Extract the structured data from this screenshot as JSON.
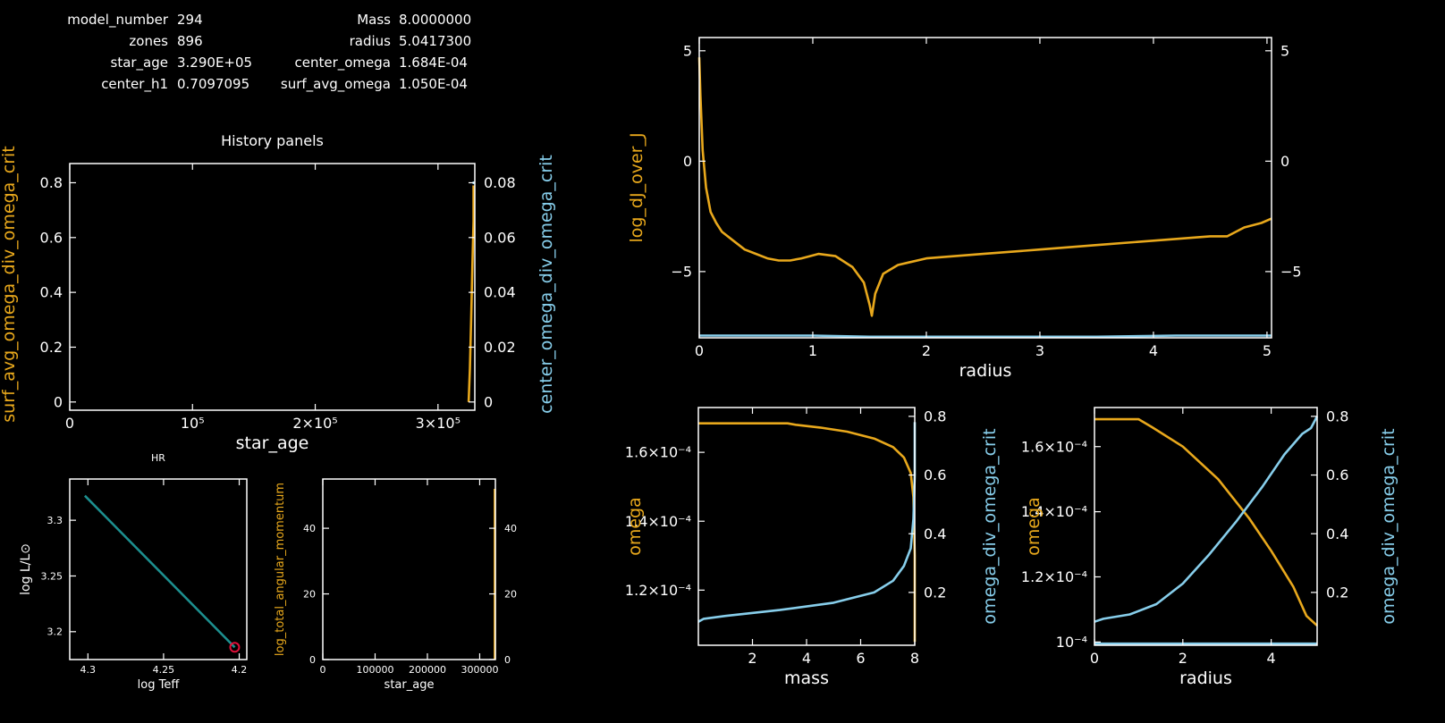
{
  "colors": {
    "background": "#000000",
    "frame": "#ffffff",
    "text": "#ffffff",
    "orange": "#e8a81c",
    "blue": "#87ceeb",
    "teal": "#1d8f8f",
    "marker": "#e0103a"
  },
  "header": {
    "rows": [
      {
        "l_label": "model_number",
        "l_value": "294",
        "r_label": "Mass",
        "r_value": "8.0000000"
      },
      {
        "l_label": "zones",
        "l_value": "896",
        "r_label": "radius",
        "r_value": "5.0417300"
      },
      {
        "l_label": "star_age",
        "l_value": "3.290E+05",
        "r_label": "center_omega",
        "r_value": "1.684E-04"
      },
      {
        "l_label": "center_h1",
        "l_value": "0.7097095",
        "r_label": "surf_avg_omega",
        "r_value": "1.050E-04"
      }
    ]
  },
  "chart_data": [
    {
      "id": "history",
      "type": "line",
      "title": "History panels",
      "xlabel": "star_age",
      "ylabel": "surf_avg_omega_div_omega_crit",
      "y2label": "center_omega_div_omega_crit",
      "xlim": [
        0,
        330000
      ],
      "ylim": [
        -0.03,
        0.87
      ],
      "y2lim": [
        -0.003,
        0.087
      ],
      "xticks": [
        {
          "v": 0,
          "t": "0"
        },
        {
          "v": 100000,
          "t": "10⁵"
        },
        {
          "v": 200000,
          "t": "2×10⁵"
        },
        {
          "v": 300000,
          "t": "3×10⁵"
        }
      ],
      "yticks": [
        {
          "v": 0,
          "t": "0"
        },
        {
          "v": 0.2,
          "t": "0.2"
        },
        {
          "v": 0.4,
          "t": "0.4"
        },
        {
          "v": 0.6,
          "t": "0.6"
        },
        {
          "v": 0.8,
          "t": "0.8"
        }
      ],
      "y2ticks": [
        {
          "v": 0,
          "t": "0"
        },
        {
          "v": 0.02,
          "t": "0.02"
        },
        {
          "v": 0.04,
          "t": "0.04"
        },
        {
          "v": 0.06,
          "t": "0.06"
        },
        {
          "v": 0.08,
          "t": "0.08"
        }
      ],
      "series": [
        {
          "color": "orange",
          "x": [
            325000,
            326000,
            327000,
            328000,
            329000,
            329000
          ],
          "y": [
            0.0,
            0.12,
            0.3,
            0.5,
            0.66,
            0.79
          ]
        },
        {
          "color": "blue",
          "axis": "y2",
          "x": [
            329000
          ],
          "y": [
            0.08
          ]
        }
      ]
    },
    {
      "id": "hr",
      "type": "line",
      "title": "HR",
      "xlabel": "log Teff",
      "ylabel": "log L/L⊙",
      "xlim": [
        4.312,
        4.195
      ],
      "ylim": [
        3.175,
        3.337
      ],
      "xticks": [
        {
          "v": 4.3,
          "t": "4.3"
        },
        {
          "v": 4.25,
          "t": "4.25"
        },
        {
          "v": 4.2,
          "t": "4.2"
        }
      ],
      "yticks": [
        {
          "v": 3.2,
          "t": "3.2"
        },
        {
          "v": 3.25,
          "t": "3.25"
        },
        {
          "v": 3.3,
          "t": "3.3"
        }
      ],
      "series": [
        {
          "color": "teal",
          "x": [
            4.302,
            4.203
          ],
          "y": [
            3.322,
            3.186
          ]
        }
      ],
      "marker": {
        "x": 4.203,
        "y": 3.186,
        "color": "marker"
      }
    },
    {
      "id": "angmom",
      "type": "line",
      "ylabel": "log_total_angular_momentum",
      "xlabel": "star_age",
      "xlim": [
        0,
        330000
      ],
      "ylim": [
        0,
        55
      ],
      "xticks": [
        {
          "v": 0,
          "t": "0"
        },
        {
          "v": 100000,
          "t": "100000"
        },
        {
          "v": 200000,
          "t": "200000"
        },
        {
          "v": 300000,
          "t": "300000"
        }
      ],
      "yticks": [
        {
          "v": 0,
          "t": "0"
        },
        {
          "v": 20,
          "t": "20"
        },
        {
          "v": 40,
          "t": "40"
        }
      ],
      "y2ticks": [
        {
          "v": 0,
          "t": "0"
        },
        {
          "v": 20,
          "t": "20"
        },
        {
          "v": 40,
          "t": "40"
        }
      ],
      "series": [
        {
          "color": "orange",
          "x": [
            329000,
            329000
          ],
          "y": [
            0,
            52
          ]
        }
      ]
    },
    {
      "id": "djj",
      "type": "line",
      "xlabel": "radius",
      "ylabel": "log_dJ_over_J",
      "xlim": [
        0,
        5.04
      ],
      "ylim": [
        -8,
        5.6
      ],
      "y2lim": [
        -8,
        5.6
      ],
      "xticks": [
        {
          "v": 0,
          "t": "0"
        },
        {
          "v": 1,
          "t": "1"
        },
        {
          "v": 2,
          "t": "2"
        },
        {
          "v": 3,
          "t": "3"
        },
        {
          "v": 4,
          "t": "4"
        },
        {
          "v": 5,
          "t": "5"
        }
      ],
      "yticks": [
        {
          "v": 5,
          "t": "5"
        },
        {
          "v": 0,
          "t": "0"
        },
        {
          "v": -5,
          "t": "−5"
        }
      ],
      "y2ticks": [
        {
          "v": 5,
          "t": "5"
        },
        {
          "v": 0,
          "t": "0"
        },
        {
          "v": -5,
          "t": "−5"
        }
      ],
      "series": [
        {
          "color": "orange",
          "x": [
            0.0,
            0.01,
            0.03,
            0.06,
            0.1,
            0.15,
            0.2,
            0.3,
            0.4,
            0.5,
            0.6,
            0.7,
            0.8,
            0.9,
            1.05,
            1.2,
            1.35,
            1.45,
            1.5,
            1.52,
            1.55,
            1.62,
            1.75,
            2.0,
            2.5,
            3.0,
            3.5,
            4.0,
            4.5,
            4.65,
            4.8,
            4.95,
            5.04
          ],
          "y": [
            4.7,
            3.0,
            0.5,
            -1.2,
            -2.3,
            -2.8,
            -3.2,
            -3.6,
            -4.0,
            -4.2,
            -4.4,
            -4.5,
            -4.5,
            -4.4,
            -4.2,
            -4.3,
            -4.8,
            -5.5,
            -6.5,
            -7.0,
            -6.0,
            -5.1,
            -4.7,
            -4.4,
            -4.2,
            -4.0,
            -3.8,
            -3.6,
            -3.4,
            -3.4,
            -3.0,
            -2.8,
            -2.6
          ]
        },
        {
          "color": "blue",
          "x": [
            0.0,
            1.0,
            1.5,
            3.5,
            4.2,
            5.04
          ],
          "y": [
            -7.9,
            -7.9,
            -7.95,
            -7.95,
            -7.9,
            -7.9
          ]
        }
      ]
    },
    {
      "id": "omega_mass",
      "type": "line",
      "xlabel": "mass",
      "ylabel": "omega",
      "y2label": "omega_div_omega_crit",
      "xlim": [
        0,
        8
      ],
      "ylim": [
        0.000104,
        0.000173
      ],
      "y2lim": [
        0.02,
        0.83
      ],
      "xticks": [
        {
          "v": 2,
          "t": "2"
        },
        {
          "v": 4,
          "t": "4"
        },
        {
          "v": 6,
          "t": "6"
        },
        {
          "v": 8,
          "t": "8"
        }
      ],
      "yticks": [
        {
          "v": 0.00012,
          "t": "1.2×10⁻⁴"
        },
        {
          "v": 0.00014,
          "t": "1.4×10⁻⁴"
        },
        {
          "v": 0.00016,
          "t": "1.6×10⁻⁴"
        }
      ],
      "y2ticks": [
        {
          "v": 0.2,
          "t": "0.2"
        },
        {
          "v": 0.4,
          "t": "0.4"
        },
        {
          "v": 0.6,
          "t": "0.6"
        },
        {
          "v": 0.8,
          "t": "0.8"
        }
      ],
      "series": [
        {
          "color": "orange",
          "x": [
            0.0,
            1.0,
            3.3,
            3.6,
            4.5,
            5.5,
            6.5,
            7.2,
            7.6,
            7.85,
            7.95,
            8.0,
            8.0
          ],
          "y": [
            0.0001684,
            0.0001684,
            0.0001684,
            0.000168,
            0.0001672,
            0.000166,
            0.000164,
            0.0001615,
            0.0001585,
            0.000154,
            0.000147,
            0.00013,
            0.000105
          ]
        },
        {
          "color": "blue",
          "axis": "y2",
          "x": [
            0.0,
            0.2,
            1.0,
            3.0,
            5.0,
            6.5,
            7.2,
            7.6,
            7.85,
            7.95,
            8.0,
            8.0
          ],
          "y": [
            0.1,
            0.11,
            0.12,
            0.14,
            0.165,
            0.2,
            0.24,
            0.29,
            0.35,
            0.45,
            0.6,
            0.78
          ]
        }
      ]
    },
    {
      "id": "omega_radius",
      "type": "line",
      "xlabel": "radius",
      "ylabel": "omega",
      "y2label": "omega_div_omega_crit",
      "xlim": [
        0,
        5.04
      ],
      "ylim": [
        9.9e-05,
        0.000172
      ],
      "y2lim": [
        0.02,
        0.83
      ],
      "xticks": [
        {
          "v": 0,
          "t": "0"
        },
        {
          "v": 2,
          "t": "2"
        },
        {
          "v": 4,
          "t": "4"
        }
      ],
      "yticks": [
        {
          "v": 0.0001,
          "t": "10⁻⁴"
        },
        {
          "v": 0.00012,
          "t": "1.2×10⁻⁴"
        },
        {
          "v": 0.00014,
          "t": "1.4×10⁻⁴"
        },
        {
          "v": 0.00016,
          "t": "1.6×10⁻⁴"
        }
      ],
      "y2ticks": [
        {
          "v": 0.2,
          "t": "0.2"
        },
        {
          "v": 0.4,
          "t": "0.4"
        },
        {
          "v": 0.6,
          "t": "0.6"
        },
        {
          "v": 0.8,
          "t": "0.8"
        }
      ],
      "series": [
        {
          "color": "orange",
          "x": [
            0.0,
            1.0,
            1.3,
            2.0,
            2.8,
            3.5,
            4.0,
            4.5,
            4.8,
            5.04
          ],
          "y": [
            0.0001684,
            0.0001684,
            0.000166,
            0.00016,
            0.00015,
            0.000138,
            0.000128,
            0.000117,
            0.000108,
            0.000105
          ]
        },
        {
          "color": "blue",
          "axis": "y2",
          "x": [
            0.0,
            0.2,
            0.8,
            1.4,
            2.0,
            2.6,
            3.2,
            3.8,
            4.3,
            4.7,
            4.9,
            5.04
          ],
          "y": [
            0.1,
            0.11,
            0.125,
            0.16,
            0.23,
            0.33,
            0.44,
            0.56,
            0.67,
            0.74,
            0.76,
            0.8
          ]
        },
        {
          "color": "blue",
          "x": [
            0.0,
            5.04
          ],
          "y": [
            9.95e-05,
            9.95e-05
          ]
        }
      ]
    }
  ]
}
